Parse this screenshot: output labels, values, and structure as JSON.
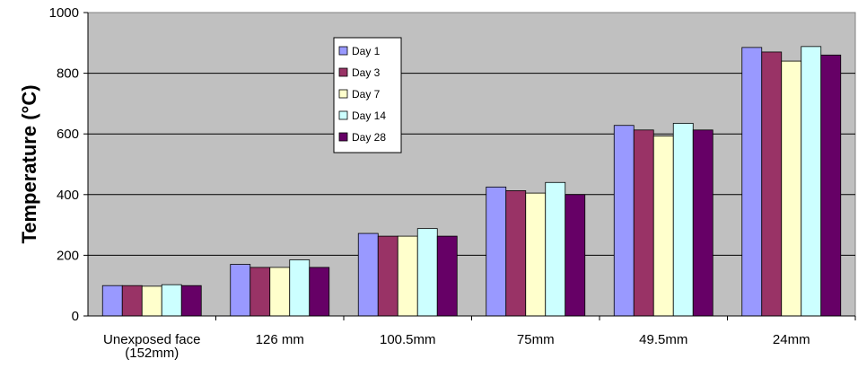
{
  "chart_data": {
    "type": "bar",
    "title": "",
    "xlabel": "",
    "ylabel": "Temperature (°C)",
    "ylim": [
      0,
      1000
    ],
    "yticks": [
      "0",
      "200",
      "400",
      "600",
      "800",
      "1000"
    ],
    "grid": true,
    "legend_position": "top-center",
    "plot_background": "#c0c0c0",
    "categories": [
      "Unexposed face (152mm)",
      "126 mm",
      "100.5mm",
      "75mm",
      "49.5mm",
      "24mm"
    ],
    "series": [
      {
        "name": "Day 1",
        "color": "#9999ff",
        "values": [
          100,
          170,
          272,
          425,
          628,
          885
        ]
      },
      {
        "name": "Day 3",
        "color": "#993366",
        "values": [
          100,
          160,
          263,
          413,
          613,
          870
        ]
      },
      {
        "name": "Day 7",
        "color": "#ffffcc",
        "values": [
          98,
          160,
          263,
          405,
          593,
          840
        ]
      },
      {
        "name": "Day 14",
        "color": "#ccffff",
        "values": [
          103,
          185,
          288,
          440,
          635,
          888
        ]
      },
      {
        "name": "Day 28",
        "color": "#660066",
        "values": [
          100,
          160,
          263,
          400,
          613,
          860
        ]
      }
    ]
  }
}
